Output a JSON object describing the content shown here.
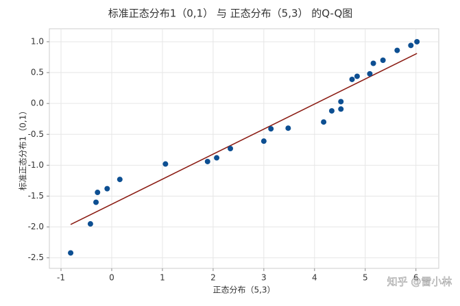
{
  "chart_data": {
    "type": "scatter",
    "title": "标准正态分布1（0,1） 与 正态分布（5,3） 的Q-Q图",
    "x_label": "正态分布（5,3）",
    "y_label": "标准正态分布1（0,1）",
    "x": [
      -0.81,
      -0.42,
      -0.31,
      -0.28,
      -0.09,
      0.16,
      1.06,
      1.89,
      2.07,
      2.34,
      3.0,
      3.14,
      3.48,
      4.18,
      4.34,
      4.52,
      4.52,
      4.74,
      4.84,
      5.09,
      5.16,
      5.35,
      5.63,
      5.9,
      6.02
    ],
    "values": [
      -2.42,
      -1.95,
      -1.6,
      -1.44,
      -1.38,
      -1.23,
      -0.98,
      -0.94,
      -0.88,
      -0.73,
      -0.61,
      -0.41,
      -0.4,
      -0.3,
      -0.12,
      -0.09,
      0.03,
      0.39,
      0.44,
      0.48,
      0.65,
      0.7,
      0.86,
      0.94,
      1.0
    ],
    "color": "#0d4f92",
    "fit_line": {
      "x": [
        -0.81,
        6.02
      ],
      "values": [
        -1.96,
        0.81
      ],
      "color": "#8b1c13"
    },
    "xlim": [
      -1.23,
      6.45
    ],
    "ylim": [
      -2.67,
      1.21
    ],
    "xticks": [
      -1,
      0,
      1,
      2,
      3,
      4,
      5,
      6
    ],
    "yticks": [
      {
        "value": 1,
        "label": "1.0"
      },
      0.5,
      {
        "value": 0,
        "label": "0.0"
      },
      -0.5,
      {
        "value": -1,
        "label": "-1.0"
      },
      -1.5,
      {
        "value": -2,
        "label": "-2.0"
      },
      -2.5
    ],
    "grid": true,
    "watermark": "知乎 @雷小林"
  }
}
